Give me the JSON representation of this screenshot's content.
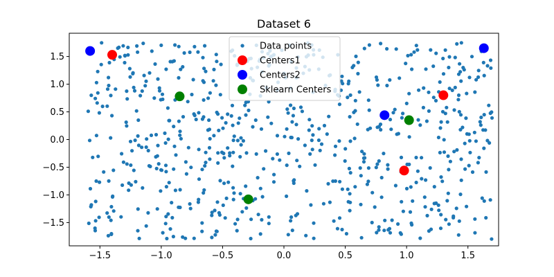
{
  "chart_data": {
    "type": "scatter",
    "title": "Dataset 6",
    "xlabel": "",
    "ylabel": "",
    "xlim": [
      -1.75,
      1.75
    ],
    "ylim": [
      -1.92,
      1.92
    ],
    "xticks": [
      -1.5,
      -1.0,
      -0.5,
      0.0,
      0.5,
      1.0,
      1.5
    ],
    "yticks": [
      -1.5,
      -1.0,
      -0.5,
      0.0,
      0.5,
      1.0,
      1.5
    ],
    "xtick_labels": [
      "−1.5",
      "−1.0",
      "−0.5",
      "0.0",
      "0.5",
      "1.0",
      "1.5"
    ],
    "ytick_labels": [
      "−1.5",
      "−1.0",
      "−0.5",
      "0.0",
      "0.5",
      "1.0",
      "1.5"
    ],
    "grid": false,
    "legend_position": "top-center",
    "series": [
      {
        "name": "Data points",
        "color": "#1f77b4",
        "marker": "small-circle",
        "approx_count": 700,
        "x_range": [
          -1.6,
          1.7
        ],
        "y_range": [
          -1.8,
          1.75
        ],
        "distribution": "approximately uniform over the range"
      },
      {
        "name": "Centers1",
        "color": "#ff0000",
        "marker": "large-circle",
        "points": [
          {
            "x": -1.4,
            "y": 1.53
          },
          {
            "x": 1.3,
            "y": 0.8
          },
          {
            "x": 0.98,
            "y": -0.56
          }
        ]
      },
      {
        "name": "Centers2",
        "color": "#0000ff",
        "marker": "large-circle",
        "points": [
          {
            "x": -1.58,
            "y": 1.6
          },
          {
            "x": 1.63,
            "y": 1.65
          },
          {
            "x": 0.82,
            "y": 0.44
          }
        ]
      },
      {
        "name": "Sklearn Centers",
        "color": "#008000",
        "marker": "large-circle",
        "points": [
          {
            "x": -0.85,
            "y": 0.78
          },
          {
            "x": 1.02,
            "y": 0.35
          },
          {
            "x": -0.29,
            "y": -1.08
          }
        ]
      }
    ]
  }
}
